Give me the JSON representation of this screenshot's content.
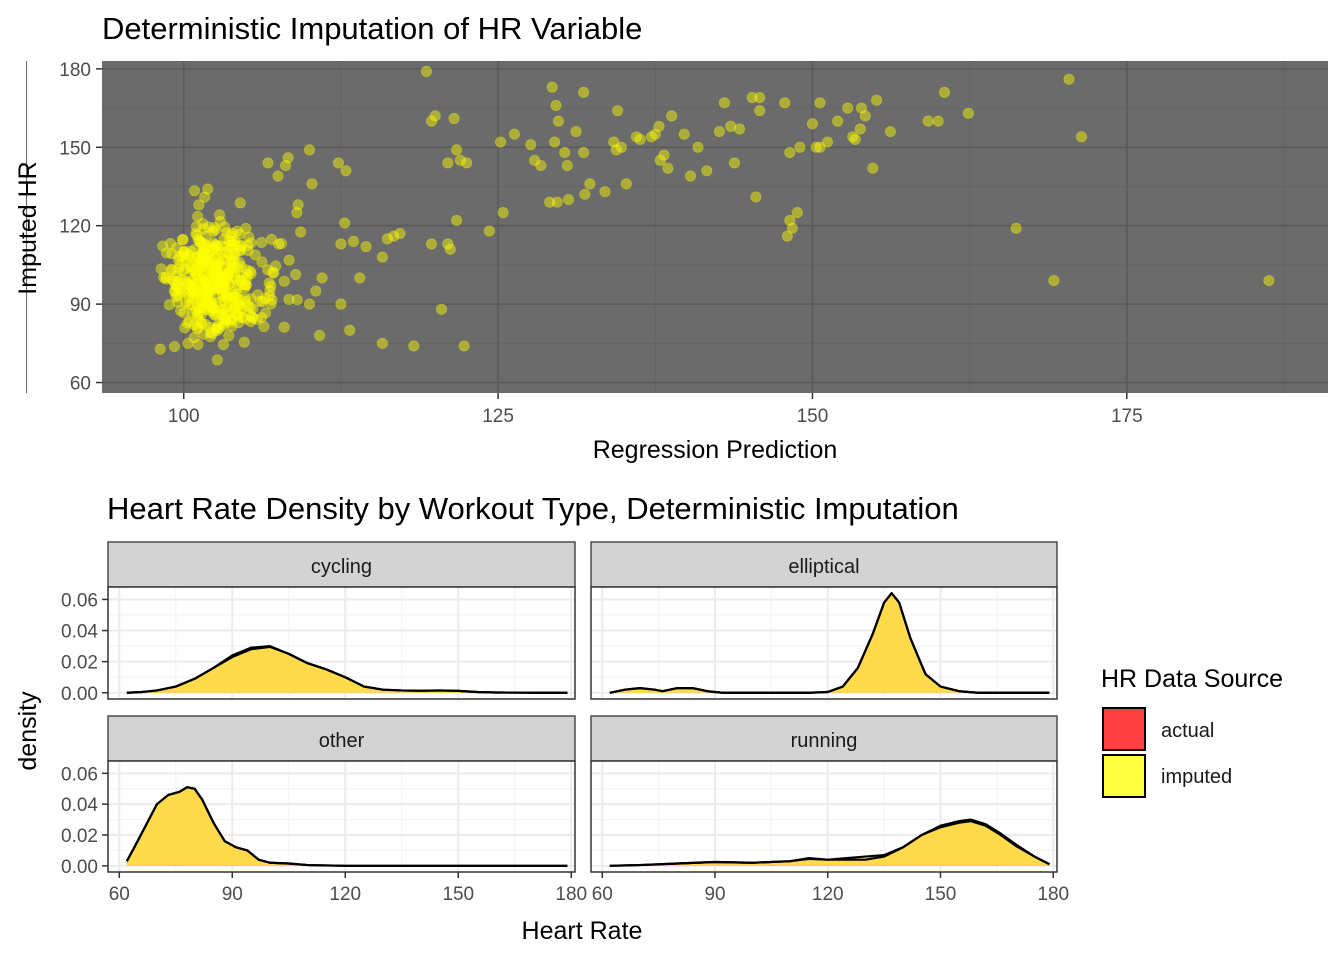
{
  "colors": {
    "panel_dark": "#6b6b6b",
    "grid_dark_major": "#5a5a5a",
    "grid_dark_minor": "#636363",
    "point": "#ffff00",
    "actual": "#ff4040",
    "imputed": "#ffff40",
    "overlap": "#ffbf40",
    "strip": "#d3d3d3"
  },
  "chart_data": [
    {
      "type": "scatter",
      "title": "Deterministic Imputation of HR Variable",
      "xlabel": "Regression Prediction",
      "ylabel": "Imputed HR",
      "xlim": [
        93.5,
        191
      ],
      "ylim": [
        56,
        183
      ],
      "xticks": [
        100,
        125,
        150,
        175
      ],
      "yticks": [
        60,
        90,
        120,
        150,
        180
      ],
      "grid": true,
      "points_cluster": {
        "description_free": true,
        "center_x": 101.5,
        "center_y": 98,
        "spread_x": 2.6,
        "spread_y": 11,
        "count": 420
      },
      "points": [
        [
          119.3,
          179
        ],
        [
          120,
          162
        ],
        [
          119.7,
          160
        ],
        [
          121.5,
          161
        ],
        [
          121.7,
          149
        ],
        [
          122,
          145
        ],
        [
          121,
          144
        ],
        [
          122.5,
          144
        ],
        [
          121.7,
          122
        ],
        [
          121,
          113
        ],
        [
          120.5,
          88
        ],
        [
          118.3,
          74
        ],
        [
          122.3,
          74
        ],
        [
          119.7,
          113
        ],
        [
          121.2,
          111
        ],
        [
          116.2,
          115
        ],
        [
          116.7,
          116
        ],
        [
          117.2,
          117
        ],
        [
          115.8,
          108
        ],
        [
          115.8,
          75
        ],
        [
          113.2,
          80
        ],
        [
          112.5,
          113
        ],
        [
          113.5,
          114
        ],
        [
          114.5,
          112
        ],
        [
          112.8,
          121
        ],
        [
          112.9,
          141
        ],
        [
          112.3,
          144
        ],
        [
          114,
          100
        ],
        [
          112.5,
          90
        ],
        [
          110,
          149
        ],
        [
          110.2,
          136
        ],
        [
          108.3,
          146
        ],
        [
          108.1,
          143
        ],
        [
          107.5,
          139
        ],
        [
          106.7,
          144
        ],
        [
          109.1,
          128
        ],
        [
          109,
          125
        ],
        [
          110.8,
          78
        ],
        [
          110.5,
          95
        ],
        [
          110,
          90
        ],
        [
          111,
          100
        ],
        [
          124.3,
          118
        ],
        [
          125.4,
          125
        ],
        [
          125.2,
          152
        ],
        [
          126.3,
          155
        ],
        [
          127.6,
          151
        ],
        [
          127.9,
          145
        ],
        [
          128.4,
          143
        ],
        [
          129.3,
          173
        ],
        [
          129.6,
          166
        ],
        [
          129.8,
          160
        ],
        [
          129.5,
          152
        ],
        [
          129.1,
          129
        ],
        [
          129.7,
          129
        ],
        [
          130.6,
          130
        ],
        [
          130.3,
          148
        ],
        [
          130.5,
          143
        ],
        [
          131.2,
          156
        ],
        [
          131.8,
          171
        ],
        [
          131.8,
          148
        ],
        [
          131.9,
          132
        ],
        [
          132.3,
          136
        ],
        [
          133.5,
          133
        ],
        [
          134.2,
          152
        ],
        [
          134.5,
          164
        ],
        [
          134.4,
          149
        ],
        [
          134.8,
          150
        ],
        [
          135.2,
          136
        ],
        [
          136,
          154
        ],
        [
          136.3,
          153
        ],
        [
          137.2,
          154
        ],
        [
          137.5,
          155
        ],
        [
          137.8,
          158
        ],
        [
          138.2,
          147
        ],
        [
          137.9,
          145
        ],
        [
          138.5,
          142
        ],
        [
          138.8,
          162
        ],
        [
          139.8,
          155
        ],
        [
          140.3,
          139
        ],
        [
          140.9,
          150
        ],
        [
          141.6,
          141
        ],
        [
          142.6,
          156
        ],
        [
          143,
          167
        ],
        [
          143.5,
          158
        ],
        [
          144.2,
          157
        ],
        [
          143.8,
          144
        ],
        [
          145.2,
          169
        ],
        [
          145.8,
          169
        ],
        [
          145.8,
          164
        ],
        [
          145.5,
          131
        ],
        [
          147.8,
          167
        ],
        [
          148,
          116
        ],
        [
          148.2,
          122
        ],
        [
          148.4,
          119
        ],
        [
          148.8,
          125
        ],
        [
          148.2,
          148
        ],
        [
          149,
          150
        ],
        [
          150,
          159
        ],
        [
          150.3,
          150
        ],
        [
          150.6,
          150
        ],
        [
          150.6,
          167
        ],
        [
          151.2,
          152
        ],
        [
          152,
          160
        ],
        [
          152.8,
          165
        ],
        [
          153.2,
          154
        ],
        [
          153.4,
          153
        ],
        [
          153.8,
          157
        ],
        [
          153.9,
          165
        ],
        [
          154.2,
          162
        ],
        [
          154.8,
          142
        ],
        [
          155.1,
          168
        ],
        [
          156.2,
          156
        ],
        [
          159.2,
          160
        ],
        [
          160,
          160
        ],
        [
          160.5,
          171
        ],
        [
          162.4,
          163
        ],
        [
          166.2,
          119
        ],
        [
          169.2,
          99
        ],
        [
          170.4,
          176
        ],
        [
          171.4,
          154
        ],
        [
          186.3,
          99
        ]
      ]
    },
    {
      "type": "area",
      "title": "Heart Rate Density by Workout Type, Deterministic Imputation",
      "xlabel": "Heart Rate",
      "ylabel": "density",
      "xlim": [
        57,
        181
      ],
      "ylim": [
        -0.004,
        0.068
      ],
      "xticks": [
        60,
        90,
        120,
        150,
        180
      ],
      "yticks": [
        "0.00",
        "0.02",
        "0.04",
        "0.06"
      ],
      "ytick_values": [
        0,
        0.02,
        0.04,
        0.06
      ],
      "legend": {
        "title": "HR Data Source",
        "entries": [
          {
            "label": "actual",
            "color": "#ff4040"
          },
          {
            "label": "imputed",
            "color": "#ffff40"
          }
        ],
        "position": "right"
      },
      "facets": [
        {
          "label": "cycling",
          "series": [
            {
              "name": "actual",
              "x": [
                62,
                66,
                70,
                75,
                80,
                85,
                90,
                95,
                100,
                105,
                110,
                115,
                120,
                125,
                130,
                135,
                140,
                145,
                150,
                155,
                160,
                170,
                179
              ],
              "values": [
                0,
                0.0005,
                0.0015,
                0.004,
                0.009,
                0.016,
                0.024,
                0.029,
                0.03,
                0.025,
                0.019,
                0.015,
                0.01,
                0.004,
                0.002,
                0.0015,
                0.0013,
                0.0015,
                0.0012,
                0.0005,
                0.0002,
                0,
                0
              ]
            },
            {
              "name": "imputed",
              "x": [
                62,
                66,
                70,
                75,
                80,
                85,
                90,
                95,
                100,
                105,
                110,
                115,
                120,
                125,
                130,
                135,
                140,
                145,
                150,
                155,
                160,
                170,
                179
              ],
              "values": [
                0,
                0.0005,
                0.0015,
                0.004,
                0.009,
                0.016,
                0.023,
                0.028,
                0.0295,
                0.025,
                0.019,
                0.015,
                0.01,
                0.004,
                0.002,
                0.0015,
                0.0013,
                0.0015,
                0.0012,
                0.0005,
                0.0002,
                0,
                0
              ]
            }
          ]
        },
        {
          "label": "elliptical",
          "series": [
            {
              "name": "actual",
              "x": [
                62,
                66,
                70,
                74,
                76,
                80,
                84,
                88,
                92,
                100,
                110,
                115,
                120,
                124,
                128,
                132,
                135,
                137,
                139,
                142,
                146,
                150,
                155,
                160,
                165,
                170,
                175,
                179
              ],
              "values": [
                0,
                0.002,
                0.003,
                0.002,
                0.001,
                0.003,
                0.003,
                0.001,
                0,
                0,
                0,
                0,
                0.0005,
                0.004,
                0.016,
                0.038,
                0.058,
                0.064,
                0.058,
                0.035,
                0.012,
                0.004,
                0.001,
                0,
                0,
                0,
                0,
                0
              ]
            },
            {
              "name": "imputed",
              "x": [
                62,
                66,
                70,
                74,
                76,
                80,
                84,
                88,
                92,
                100,
                110,
                115,
                120,
                124,
                128,
                132,
                135,
                137,
                139,
                142,
                146,
                150,
                155,
                160,
                165,
                170,
                175,
                179
              ],
              "values": [
                0,
                0.002,
                0.003,
                0.002,
                0.001,
                0.003,
                0.003,
                0.001,
                0,
                0,
                0,
                0,
                0.0005,
                0.004,
                0.016,
                0.038,
                0.058,
                0.064,
                0.058,
                0.035,
                0.012,
                0.004,
                0.001,
                0,
                0,
                0,
                0,
                0
              ]
            }
          ]
        },
        {
          "label": "other",
          "series": [
            {
              "name": "actual",
              "x": [
                62,
                64,
                67,
                70,
                73,
                76,
                78,
                80,
                82,
                85,
                88,
                91,
                94,
                97,
                100,
                105,
                110,
                120,
                130,
                140,
                150,
                160,
                170,
                179
              ],
              "values": [
                0.003,
                0.012,
                0.026,
                0.04,
                0.046,
                0.048,
                0.051,
                0.05,
                0.043,
                0.028,
                0.016,
                0.012,
                0.01,
                0.004,
                0.002,
                0.0015,
                0.0005,
                0,
                0,
                0,
                0,
                0,
                0,
                0
              ]
            },
            {
              "name": "imputed",
              "x": [
                62,
                64,
                67,
                70,
                73,
                76,
                78,
                80,
                82,
                85,
                88,
                91,
                94,
                97,
                100,
                105,
                110,
                120,
                130,
                140,
                150,
                160,
                170,
                179
              ],
              "values": [
                0.003,
                0.012,
                0.026,
                0.04,
                0.046,
                0.048,
                0.051,
                0.05,
                0.043,
                0.028,
                0.016,
                0.012,
                0.01,
                0.004,
                0.002,
                0.0015,
                0.0005,
                0,
                0,
                0,
                0,
                0,
                0,
                0
              ]
            }
          ]
        },
        {
          "label": "running",
          "series": [
            {
              "name": "actual",
              "x": [
                62,
                70,
                80,
                90,
                100,
                110,
                115,
                120,
                125,
                130,
                135,
                140,
                145,
                150,
                155,
                158,
                162,
                166,
                170,
                175,
                179
              ],
              "values": [
                0,
                0.0005,
                0.0015,
                0.0025,
                0.002,
                0.003,
                0.005,
                0.004,
                0.004,
                0.004,
                0.006,
                0.012,
                0.02,
                0.026,
                0.029,
                0.03,
                0.027,
                0.021,
                0.014,
                0.006,
                0.001
              ]
            },
            {
              "name": "imputed",
              "x": [
                62,
                70,
                80,
                90,
                100,
                110,
                115,
                120,
                125,
                130,
                135,
                140,
                145,
                150,
                155,
                158,
                162,
                166,
                170,
                175,
                179
              ],
              "values": [
                0,
                0.0005,
                0.0015,
                0.0025,
                0.002,
                0.003,
                0.0045,
                0.004,
                0.005,
                0.006,
                0.007,
                0.012,
                0.02,
                0.025,
                0.028,
                0.029,
                0.026,
                0.02,
                0.013,
                0.006,
                0.001
              ]
            }
          ]
        }
      ]
    }
  ]
}
